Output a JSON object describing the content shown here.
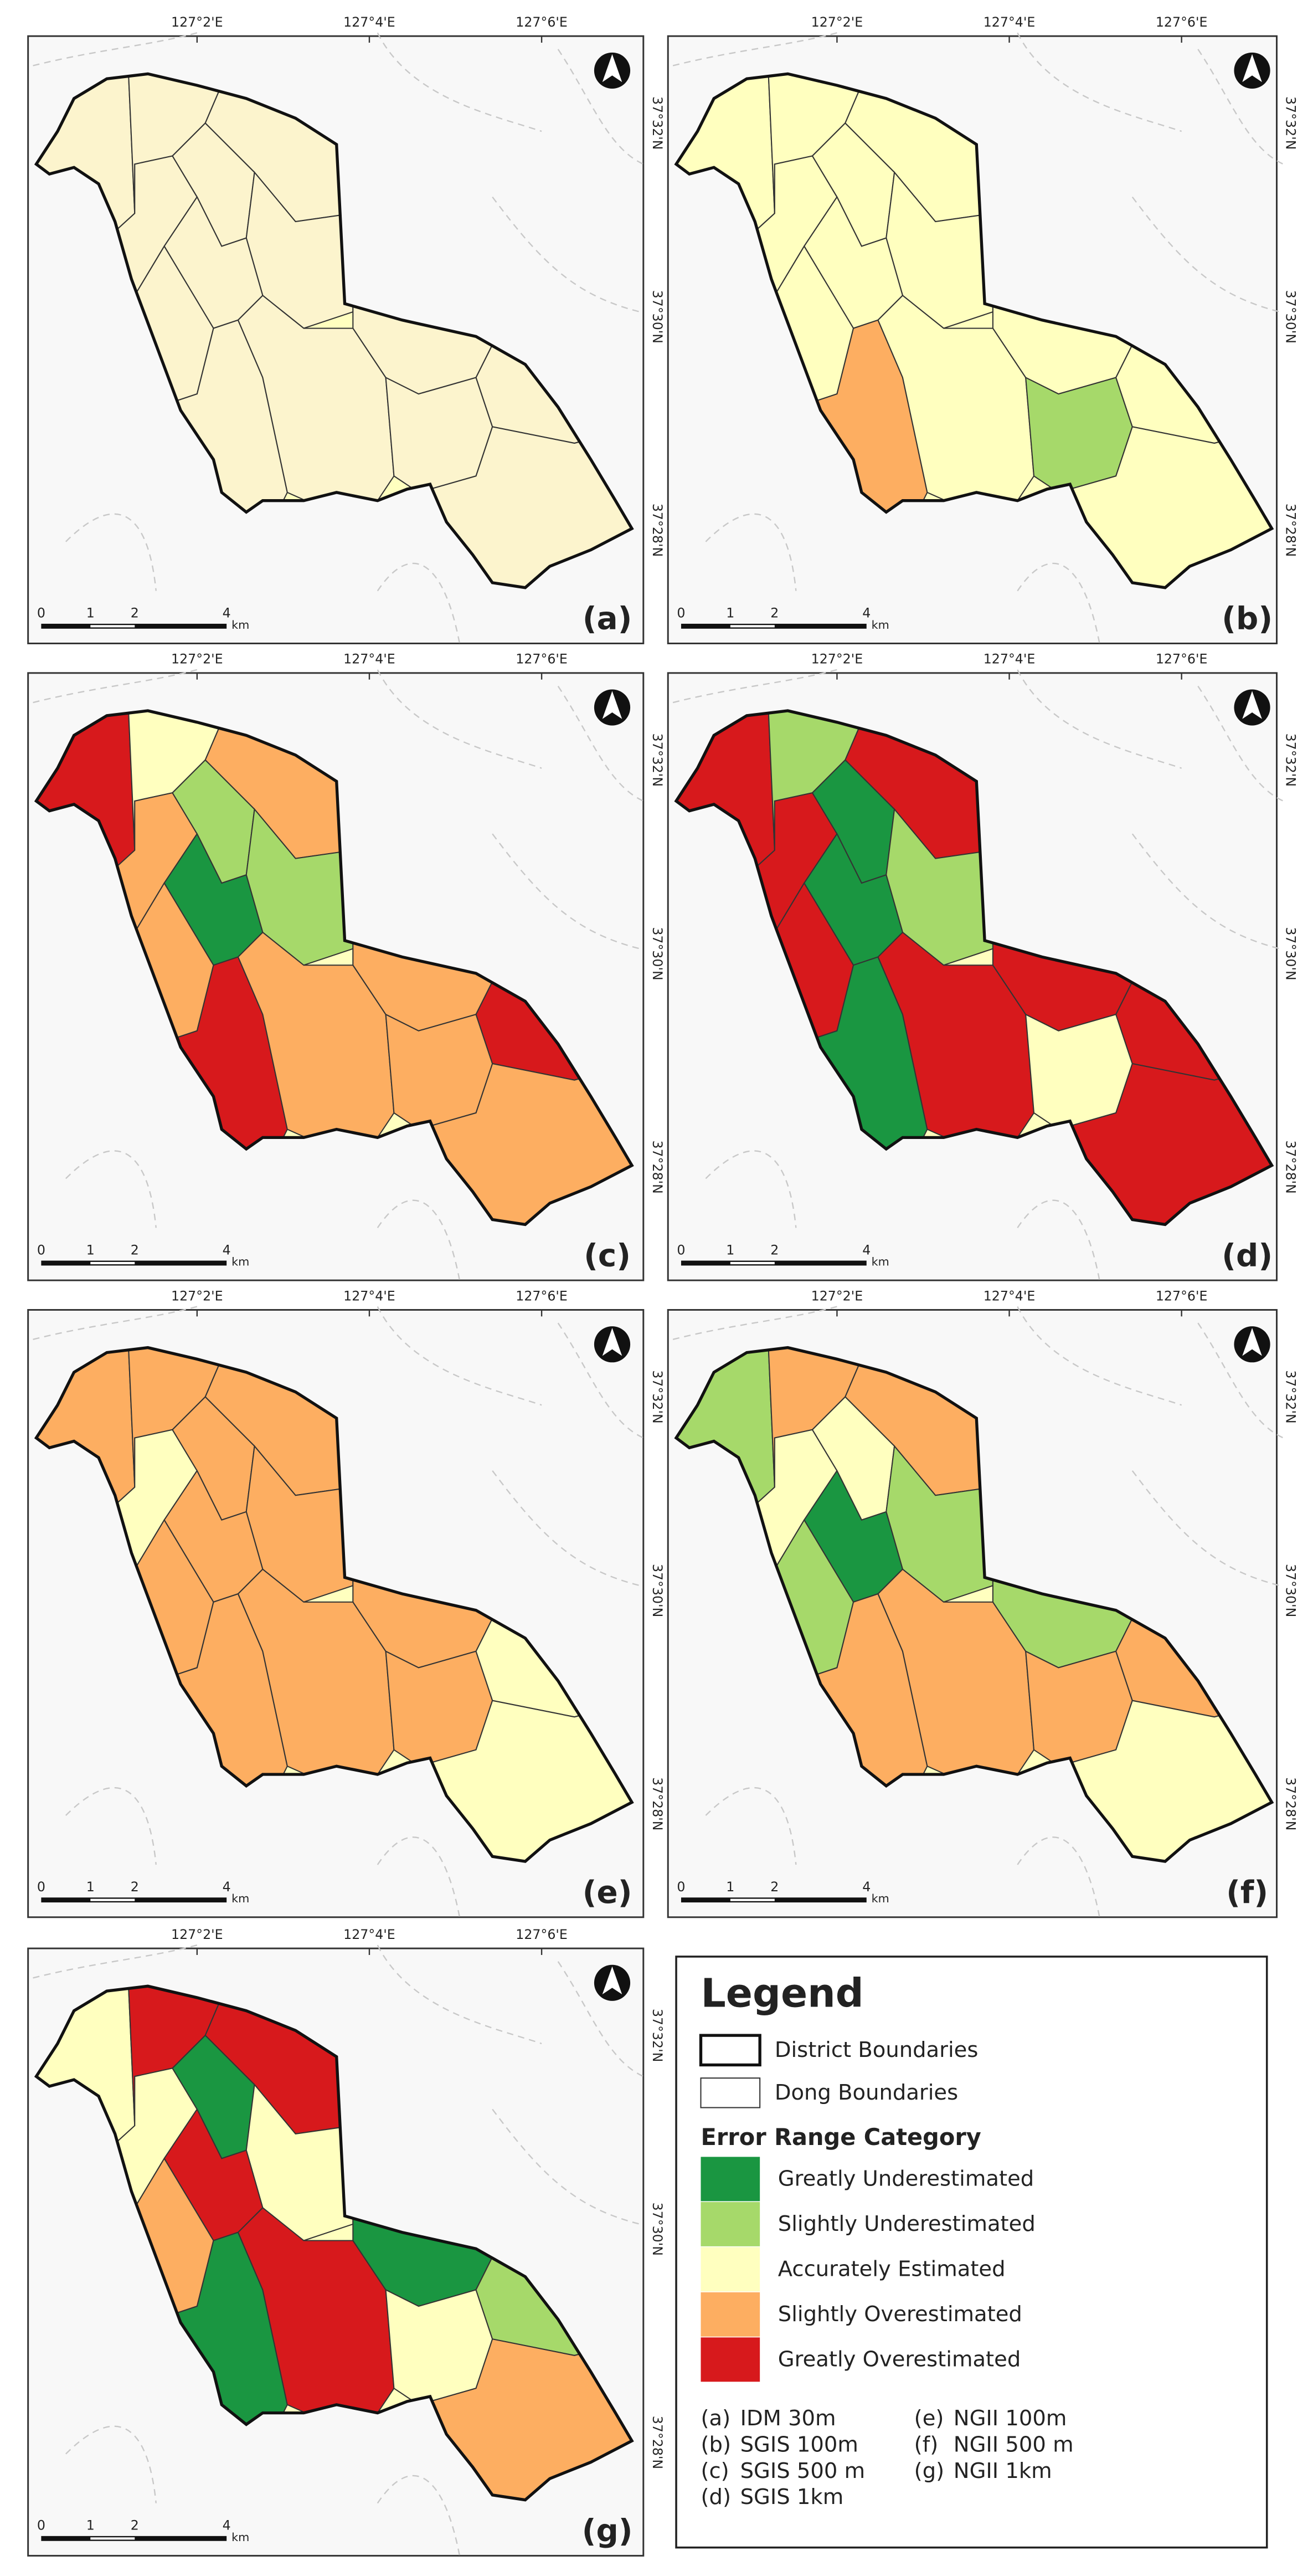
{
  "panels": [
    {
      "label": "(a)"
    },
    {
      "label": "(b)"
    },
    {
      "label": "(c)"
    },
    {
      "label": "(d)"
    },
    {
      "label": "(e)"
    },
    {
      "label": "(f)"
    },
    {
      "label": "(g)"
    }
  ],
  "coordinates": {
    "longitudes": [
      "127°2'E",
      "127°4'E",
      "127°6'E"
    ],
    "latitudes": [
      "37°32'N",
      "37°30'N",
      "37°28'N"
    ]
  },
  "scale_bar": {
    "labels": [
      "0",
      "1",
      "2",
      "4"
    ],
    "unit": "km"
  },
  "legend": {
    "title": "Legend",
    "boundaries": [
      "District Boundaries",
      "Dong Boundaries"
    ],
    "category_title": "Error Range Category",
    "categories": [
      {
        "name": "Greatly Underestimated",
        "color": "#1a9641"
      },
      {
        "name": "Slightly Underestimated",
        "color": "#a6d96a"
      },
      {
        "name": "Accurately Estimated",
        "color": "#ffffbf"
      },
      {
        "name": "Slightly Overestimated",
        "color": "#fdae61"
      },
      {
        "name": "Greatly Overestimated",
        "color": "#d7191c"
      }
    ],
    "sources": [
      {
        "key": "(a)",
        "name": "IDM 30m"
      },
      {
        "key": "(b)",
        "name": "SGIS 100m"
      },
      {
        "key": "(c)",
        "name": "SGIS 500 m"
      },
      {
        "key": "(d)",
        "name": "SGIS 1km"
      },
      {
        "key": "(e)",
        "name": "NGII 100m"
      },
      {
        "key": "(f)",
        "name": "NGII 500 m"
      },
      {
        "key": "(g)",
        "name": "NGII 1km"
      }
    ]
  }
}
